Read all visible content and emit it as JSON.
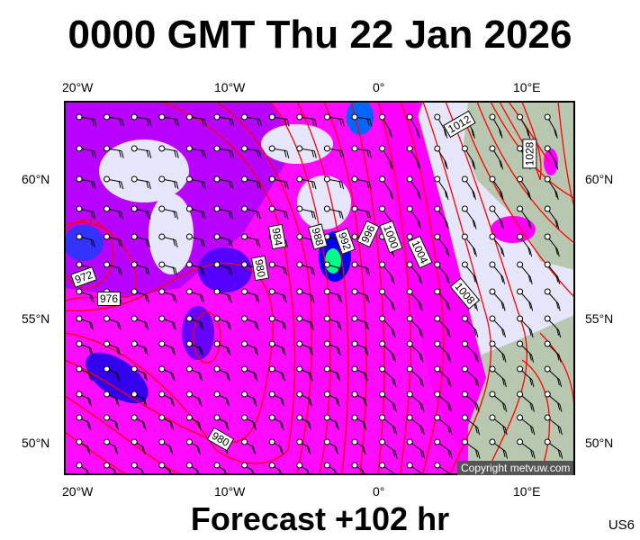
{
  "title": "0000 GMT Thu 22 Jan 2026",
  "footer": "Forecast +102 hr",
  "region_code": "US6",
  "copyright": "Copyright metvuw.com",
  "axes": {
    "lon_labels": [
      "20°W",
      "10°W",
      "0°",
      "10°E"
    ],
    "lat_labels": [
      "60°N",
      "55°N",
      "50°N"
    ]
  },
  "isobar_labels": [
    "972",
    "976",
    "980",
    "984",
    "988",
    "992",
    "996",
    "1000",
    "1004",
    "1008",
    "1012",
    "1028",
    "980"
  ],
  "colors": {
    "background": "#e6e6fa",
    "precip_light": "#ff00ff",
    "precip_mid": "#9900ff",
    "precip_heavy": "#0033ff",
    "precip_max": "#00ff88",
    "isobar": "#ff0000",
    "land": "#b8c8b0"
  }
}
